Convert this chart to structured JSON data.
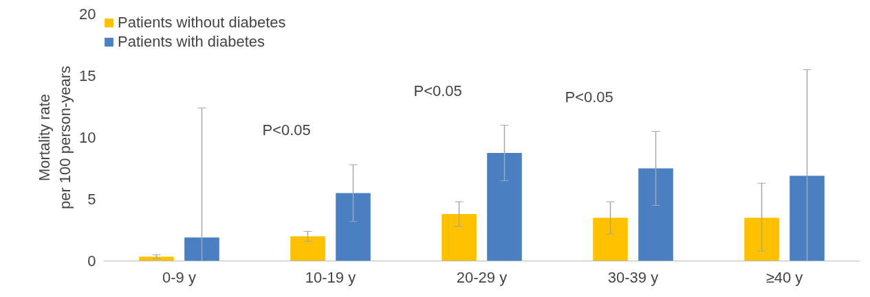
{
  "chart_data": {
    "type": "bar",
    "ylabel": "Mortality rate\nper 100 person-years",
    "categories": [
      "0-9 y",
      "10-19 y",
      "20-29 y",
      "30-39 y",
      "≥40 y"
    ],
    "series": [
      {
        "name": "Patients without diabetes",
        "color": "#ffc000",
        "values": [
          0.35,
          2.0,
          3.8,
          3.5,
          3.5
        ],
        "errors": [
          [
            0.2,
            0.5
          ],
          [
            1.6,
            2.4
          ],
          [
            2.8,
            4.8
          ],
          [
            2.2,
            4.8
          ],
          [
            0.8,
            6.3
          ]
        ]
      },
      {
        "name": "Patients with diabetes",
        "color": "#4a7fc1",
        "values": [
          1.9,
          5.5,
          8.75,
          7.5,
          6.9
        ],
        "errors": [
          [
            0,
            12.4
          ],
          [
            3.2,
            7.8
          ],
          [
            6.5,
            11
          ],
          [
            4.5,
            10.5
          ],
          [
            0,
            15.5
          ]
        ]
      }
    ],
    "ylim": [
      0,
      20
    ],
    "yticks": [
      0,
      5,
      10,
      15,
      20
    ],
    "grid": false,
    "legend": "top left",
    "annotations": [
      "P<0.05",
      "P<0.05",
      "P<0.05"
    ]
  }
}
